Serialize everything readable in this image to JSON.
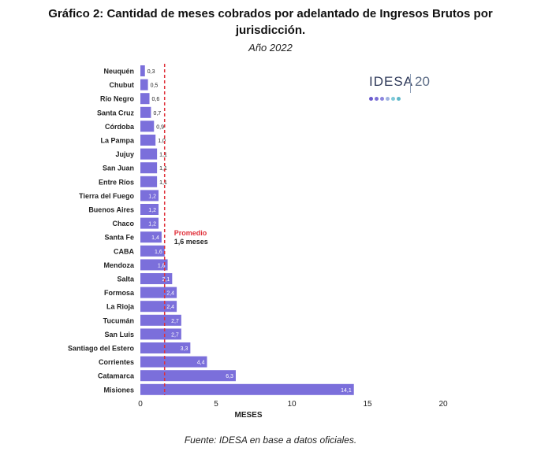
{
  "header": {
    "title_line1": "Gráfico 2: Cantidad de meses cobrados por adelantado de Ingresos Brutos por",
    "title_line2": "jurisdicción.",
    "subtitle": "Año 2022"
  },
  "logo": {
    "text": "IDESA",
    "number": "20",
    "dot_colors": [
      "#6a5acd",
      "#7b6fd6",
      "#8c86de",
      "#9fb3e0",
      "#7fc9d9",
      "#5fb8c9"
    ]
  },
  "source": "Fuente: IDESA en base a datos oficiales.",
  "colors": {
    "bar": "#7b6fdb",
    "average_line": "#e0303a",
    "average_label": "#e0303a"
  },
  "chart_data": {
    "type": "bar",
    "orientation": "horizontal",
    "title": "Gráfico 2: Cantidad de meses cobrados por adelantado de Ingresos Brutos por jurisdicción.",
    "subtitle": "Año 2022",
    "xlabel": "MESES",
    "ylabel": "",
    "xlim": [
      0,
      20
    ],
    "x_ticks": [
      "0",
      "5",
      "10",
      "15",
      "20"
    ],
    "grid": false,
    "categories": [
      "Neuquén",
      "Chubut",
      "Río Negro",
      "Santa Cruz",
      "Córdoba",
      "La Pampa",
      "Jujuy",
      "San Juan",
      "Entre Ríos",
      "Tierra del Fuego",
      "Buenos Aires",
      "Chaco",
      "Santa Fe",
      "CABA",
      "Mendoza",
      "Salta",
      "Formosa",
      "La Rioja",
      "Tucumán",
      "San Luis",
      "Santiago del Estero",
      "Corrientes",
      "Catamarca",
      "Misiones"
    ],
    "values": [
      0.3,
      0.5,
      0.6,
      0.7,
      0.9,
      1.0,
      1.1,
      1.1,
      1.1,
      1.2,
      1.2,
      1.2,
      1.4,
      1.6,
      1.8,
      2.1,
      2.4,
      2.4,
      2.7,
      2.7,
      3.3,
      4.4,
      6.3,
      14.1
    ],
    "value_labels": [
      "0,3",
      "0,5",
      "0,6",
      "0,7",
      "0,9",
      "1,0",
      "1,1",
      "1,1",
      "1,1",
      "1,2",
      "1,2",
      "1,2",
      "1,4",
      "1,6",
      "1,8",
      "2,1",
      "2,4",
      "2,4",
      "2,7",
      "2,7",
      "3,3",
      "4,4",
      "6,3",
      "14,1"
    ],
    "average": {
      "value": 1.6,
      "label": "Promedio",
      "value_label": "1,6 meses"
    }
  }
}
